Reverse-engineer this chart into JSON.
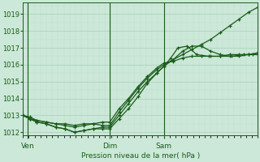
{
  "bg_color": "#cce8d8",
  "grid_major_color": "#aacfba",
  "grid_minor_color": "#bddeca",
  "line_color": "#1a5c1a",
  "xlabel": "Pression niveau de la mer( hPa )",
  "label_color": "#1a5c1a",
  "ylim": [
    1011.8,
    1019.7
  ],
  "yticks": [
    1012,
    1013,
    1014,
    1015,
    1016,
    1017,
    1018,
    1019
  ],
  "xlim": [
    0.0,
    1.0
  ],
  "xtick_positions": [
    0.02,
    0.37,
    0.6
  ],
  "xtick_labels": [
    "Ven",
    "Dim",
    "Sam"
  ],
  "vline_positions": [
    0.02,
    0.37,
    0.6
  ],
  "pressures": [
    {
      "x": [
        0.0,
        0.03,
        0.06,
        0.1,
        0.14,
        0.18,
        0.22,
        0.26,
        0.3,
        0.34,
        0.37,
        0.41,
        0.45,
        0.49,
        0.53,
        0.57,
        0.6,
        0.64,
        0.68,
        0.72,
        0.76,
        0.8,
        0.84,
        0.88,
        0.92,
        0.96,
        1.0
      ],
      "y": [
        1013.0,
        1012.8,
        1012.7,
        1012.6,
        1012.5,
        1012.4,
        1012.3,
        1012.4,
        1012.5,
        1012.4,
        1012.4,
        1013.2,
        1013.9,
        1014.6,
        1015.2,
        1015.7,
        1016.0,
        1016.3,
        1016.6,
        1016.9,
        1017.2,
        1017.5,
        1017.9,
        1018.3,
        1018.7,
        1019.1,
        1019.4
      ]
    },
    {
      "x": [
        0.0,
        0.03,
        0.06,
        0.1,
        0.14,
        0.18,
        0.22,
        0.26,
        0.3,
        0.34,
        0.37,
        0.41,
        0.45,
        0.49,
        0.53,
        0.57,
        0.6,
        0.64,
        0.68,
        0.72,
        0.76,
        0.8,
        0.84,
        0.88,
        0.92,
        0.96,
        1.0
      ],
      "y": [
        1013.0,
        1012.8,
        1012.6,
        1012.5,
        1012.3,
        1012.2,
        1012.0,
        1012.1,
        1012.2,
        1012.2,
        1012.2,
        1012.8,
        1013.4,
        1014.1,
        1014.9,
        1015.5,
        1015.9,
        1016.3,
        1016.8,
        1017.1,
        1017.1,
        1016.8,
        1016.6,
        1016.5,
        1016.5,
        1016.6,
        1016.6
      ]
    },
    {
      "x": [
        0.0,
        0.03,
        0.06,
        0.1,
        0.14,
        0.18,
        0.22,
        0.26,
        0.3,
        0.34,
        0.37,
        0.41,
        0.45,
        0.49,
        0.53,
        0.57,
        0.6,
        0.64,
        0.68,
        0.72,
        0.76,
        0.8,
        0.84,
        0.88,
        0.92,
        0.96,
        1.0
      ],
      "y": [
        1013.0,
        1012.9,
        1012.7,
        1012.6,
        1012.5,
        1012.5,
        1012.4,
        1012.5,
        1012.5,
        1012.6,
        1012.6,
        1013.4,
        1014.0,
        1014.7,
        1015.3,
        1015.8,
        1016.1,
        1016.2,
        1016.4,
        1016.5,
        1016.5,
        1016.5,
        1016.5,
        1016.6,
        1016.6,
        1016.6,
        1016.7
      ]
    },
    {
      "x": [
        0.0,
        0.03,
        0.06,
        0.1,
        0.14,
        0.18,
        0.22,
        0.26,
        0.3,
        0.34,
        0.37,
        0.41,
        0.45,
        0.49,
        0.53,
        0.57,
        0.6,
        0.63,
        0.66,
        0.7,
        0.74,
        0.79,
        0.84,
        0.89,
        0.94,
        0.98,
        1.0
      ],
      "y": [
        1013.0,
        1012.8,
        1012.6,
        1012.5,
        1012.3,
        1012.2,
        1012.0,
        1012.1,
        1012.2,
        1012.3,
        1012.3,
        1013.0,
        1013.7,
        1014.4,
        1015.0,
        1015.5,
        1015.9,
        1016.4,
        1017.0,
        1017.1,
        1016.6,
        1016.5,
        1016.5,
        1016.5,
        1016.6,
        1016.6,
        1016.7
      ]
    }
  ]
}
